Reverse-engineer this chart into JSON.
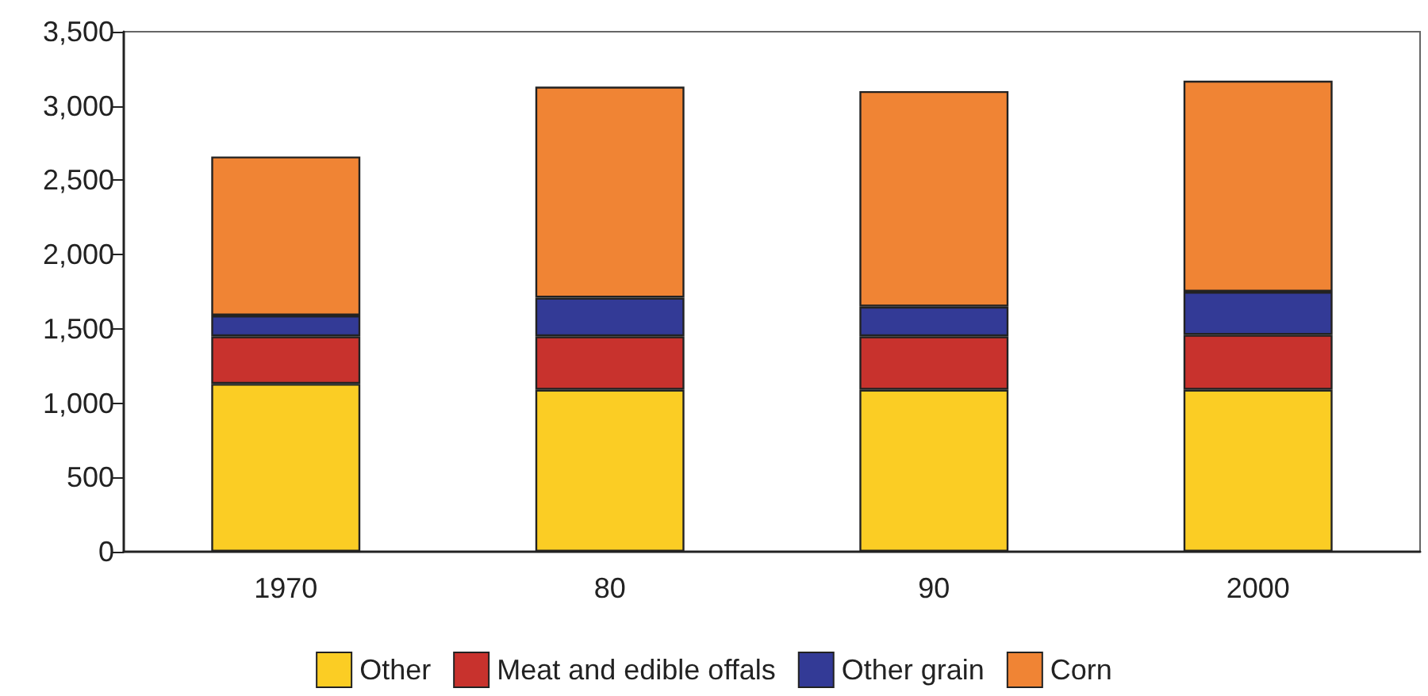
{
  "chart_data": {
    "type": "bar",
    "stacked": true,
    "categories": [
      "1970",
      "80",
      "90",
      "2000"
    ],
    "series": [
      {
        "name": "Other",
        "color": "#fbcd24",
        "values": [
          1130,
          1090,
          1090,
          1090
        ]
      },
      {
        "name": "Meat and edible offals",
        "color": "#c8322d",
        "values": [
          320,
          360,
          360,
          370
        ]
      },
      {
        "name": "Other grain",
        "color": "#333a96",
        "values": [
          140,
          260,
          200,
          290
        ]
      },
      {
        "name": "Corn",
        "color": "#f08434",
        "values": [
          1070,
          1420,
          1450,
          1420
        ]
      }
    ],
    "ylim": [
      0,
      3500
    ],
    "yticks": [
      {
        "value": 0,
        "label": "0"
      },
      {
        "value": 500,
        "label": "500"
      },
      {
        "value": 1000,
        "label": "1,000"
      },
      {
        "value": 1500,
        "label": "1,500"
      },
      {
        "value": 2000,
        "label": "2,000"
      },
      {
        "value": 2500,
        "label": "2,500"
      },
      {
        "value": 3000,
        "label": "3,000"
      },
      {
        "value": 3500,
        "label": "3,500"
      }
    ],
    "grid": false,
    "legend": "bottom"
  }
}
